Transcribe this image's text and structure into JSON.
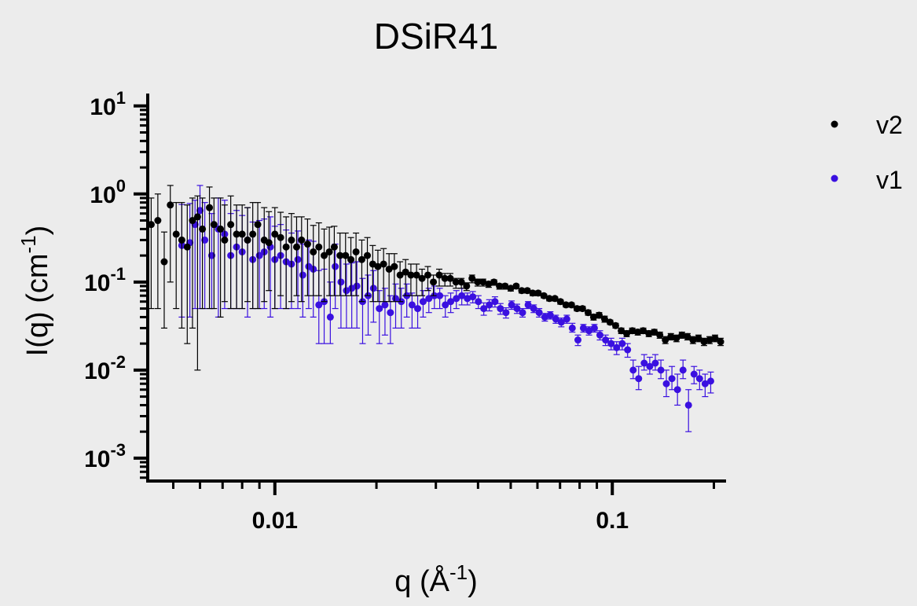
{
  "chart_data": {
    "type": "scatter",
    "title": "DSiR41",
    "xlabel": {
      "main": "q (Å",
      "sup": "-1",
      "tail": ")"
    },
    "ylabel": {
      "main": "I(q) (cm",
      "sup": "-1",
      "tail": ")"
    },
    "xscale": "log",
    "yscale": "log",
    "xlim": [
      0.0042,
      0.215
    ],
    "ylim": [
      0.00055,
      13
    ],
    "x_ticks": [
      {
        "value": 0.01,
        "label": "0.01"
      },
      {
        "value": 0.1,
        "label": "0.1"
      }
    ],
    "y_ticks": [
      {
        "value": 10,
        "base": "10",
        "exp": "1"
      },
      {
        "value": 1,
        "base": "10",
        "exp": "0"
      },
      {
        "value": 0.1,
        "base": "10",
        "exp": "-1"
      },
      {
        "value": 0.01,
        "base": "10",
        "exp": "-2"
      },
      {
        "value": 0.001,
        "base": "10",
        "exp": "-3"
      }
    ],
    "grid": false,
    "legend_position": "top-right",
    "series": [
      {
        "name": "v2",
        "color": "#000000",
        "x": [
          0.0043,
          0.0045,
          0.0047,
          0.0049,
          0.0051,
          0.0053,
          0.0055,
          0.0057,
          0.0059,
          0.0061,
          0.0064,
          0.0066,
          0.0069,
          0.0071,
          0.0074,
          0.0077,
          0.008,
          0.0083,
          0.0086,
          0.0089,
          0.0093,
          0.0096,
          0.01,
          0.0104,
          0.0108,
          0.0112,
          0.0116,
          0.012,
          0.0125,
          0.013,
          0.0135,
          0.014,
          0.0145,
          0.015,
          0.0156,
          0.0162,
          0.0168,
          0.0174,
          0.0181,
          0.0188,
          0.0195,
          0.0202,
          0.021,
          0.0218,
          0.0226,
          0.0235,
          0.0244,
          0.0253,
          0.0263,
          0.0273,
          0.0284,
          0.0295,
          0.0307,
          0.0319,
          0.0331,
          0.0344,
          0.0357,
          0.037,
          0.0384,
          0.0399,
          0.0414,
          0.043,
          0.0446,
          0.0463,
          0.0481,
          0.05,
          0.0519,
          0.0539,
          0.056,
          0.0581,
          0.0603,
          0.0627,
          0.0651,
          0.0676,
          0.0702,
          0.0729,
          0.0757,
          0.0786,
          0.0816,
          0.0848,
          0.088,
          0.0914,
          0.0949,
          0.0985,
          0.1023,
          0.1063,
          0.1103,
          0.1146,
          0.119,
          0.1235,
          0.1283,
          0.1332,
          0.1383,
          0.1436,
          0.1491,
          0.1549,
          0.1608,
          0.167,
          0.1734,
          0.1801,
          0.187,
          0.1942,
          0.2016,
          0.2094
        ],
        "y": [
          0.45,
          0.5,
          0.17,
          0.75,
          0.35,
          0.3,
          0.25,
          0.5,
          0.55,
          0.4,
          0.7,
          0.45,
          0.4,
          0.3,
          0.45,
          0.35,
          0.35,
          0.3,
          0.35,
          0.45,
          0.3,
          0.28,
          0.35,
          0.32,
          0.25,
          0.3,
          0.25,
          0.3,
          0.27,
          0.22,
          0.25,
          0.2,
          0.22,
          0.25,
          0.2,
          0.2,
          0.18,
          0.22,
          0.18,
          0.2,
          0.16,
          0.15,
          0.16,
          0.14,
          0.15,
          0.12,
          0.13,
          0.12,
          0.12,
          0.11,
          0.12,
          0.1,
          0.12,
          0.11,
          0.11,
          0.1,
          0.1,
          0.09,
          0.11,
          0.1,
          0.1,
          0.095,
          0.1,
          0.09,
          0.09,
          0.085,
          0.09,
          0.08,
          0.08,
          0.075,
          0.075,
          0.07,
          0.065,
          0.065,
          0.06,
          0.055,
          0.055,
          0.05,
          0.05,
          0.045,
          0.04,
          0.042,
          0.038,
          0.035,
          0.032,
          0.028,
          0.026,
          0.028,
          0.027,
          0.028,
          0.026,
          0.027,
          0.025,
          0.022,
          0.024,
          0.023,
          0.025,
          0.024,
          0.022,
          0.023,
          0.021,
          0.022,
          0.023,
          0.021
        ],
        "error_low": [
          0.4,
          0.45,
          0.14,
          0.65,
          0.3,
          0.27,
          0.23,
          0.47,
          0.54,
          0.35,
          0.65,
          0.4,
          0.36,
          0.24,
          0.4,
          0.3,
          0.3,
          0.24,
          0.3,
          0.4,
          0.24,
          0.2,
          0.3,
          0.25,
          0.2,
          0.24,
          0.18,
          0.24,
          0.2,
          0.15,
          0.18,
          0.14,
          0.15,
          0.18,
          0.13,
          0.13,
          0.11,
          0.15,
          0.12,
          0.13,
          0.1,
          0.09,
          0.1,
          0.08,
          0.09,
          0.06,
          0.06,
          0.05,
          0.05,
          0.04,
          0.04,
          0.03,
          0.03,
          0.02,
          0.02,
          0.015,
          0.015,
          0.01,
          0.012,
          0.01,
          0.01,
          0.008,
          0.008,
          0.007,
          0.007,
          0.006,
          0.006,
          0.005,
          0.005,
          0.005,
          0.005,
          0.004,
          0.004,
          0.004,
          0.004,
          0.003,
          0.003,
          0.003,
          0.003,
          0.003,
          0.003,
          0.003,
          0.003,
          0.002,
          0.002,
          0.002,
          0.002,
          0.002,
          0.002,
          0.002,
          0.002,
          0.002,
          0.002,
          0.002,
          0.002,
          0.002,
          0.002,
          0.002,
          0.002,
          0.002,
          0.002,
          0.002,
          0.002,
          0.002
        ],
        "error_high": [
          0.45,
          0.5,
          0.2,
          0.5,
          0.45,
          0.5,
          0.5,
          0.4,
          0.4,
          0.5,
          0.5,
          0.45,
          0.5,
          0.45,
          0.5,
          0.4,
          0.4,
          0.4,
          0.45,
          0.35,
          0.4,
          0.35,
          0.35,
          0.3,
          0.3,
          0.3,
          0.3,
          0.25,
          0.25,
          0.22,
          0.22,
          0.2,
          0.2,
          0.18,
          0.16,
          0.16,
          0.14,
          0.14,
          0.12,
          0.12,
          0.1,
          0.08,
          0.08,
          0.07,
          0.06,
          0.05,
          0.05,
          0.04,
          0.04,
          0.03,
          0.03,
          0.02,
          0.02,
          0.015,
          0.015,
          0.01,
          0.01,
          0.008,
          0.01,
          0.008,
          0.008,
          0.006,
          0.006,
          0.005,
          0.005,
          0.004,
          0.004,
          0.004,
          0.004,
          0.004,
          0.004,
          0.003,
          0.003,
          0.003,
          0.003,
          0.003,
          0.003,
          0.003,
          0.003,
          0.003,
          0.003,
          0.003,
          0.003,
          0.002,
          0.002,
          0.002,
          0.002,
          0.002,
          0.002,
          0.002,
          0.002,
          0.002,
          0.002,
          0.002,
          0.002,
          0.002,
          0.002,
          0.002,
          0.002,
          0.002,
          0.002,
          0.002,
          0.002,
          0.002
        ]
      },
      {
        "name": "v1",
        "color": "#3a10e0",
        "x": [
          0.0053,
          0.0056,
          0.0058,
          0.006,
          0.0062,
          0.0065,
          0.0068,
          0.0071,
          0.0074,
          0.0077,
          0.008,
          0.0083,
          0.0086,
          0.009,
          0.0093,
          0.0097,
          0.01,
          0.0104,
          0.0108,
          0.0112,
          0.0117,
          0.0121,
          0.0126,
          0.013,
          0.0135,
          0.014,
          0.0146,
          0.0151,
          0.0157,
          0.0163,
          0.0169,
          0.0175,
          0.0182,
          0.0189,
          0.0196,
          0.0204,
          0.0212,
          0.022,
          0.0228,
          0.0237,
          0.0246,
          0.0255,
          0.0265,
          0.0275,
          0.0286,
          0.0297,
          0.0308,
          0.032,
          0.0332,
          0.0345,
          0.0358,
          0.0372,
          0.0386,
          0.0401,
          0.0416,
          0.0432,
          0.0449,
          0.0466,
          0.0484,
          0.0503,
          0.0522,
          0.0542,
          0.0563,
          0.0585,
          0.0607,
          0.0631,
          0.0655,
          0.068,
          0.0706,
          0.0733,
          0.0761,
          0.0791,
          0.0821,
          0.0853,
          0.0885,
          0.0919,
          0.0955,
          0.0992,
          0.103,
          0.107,
          0.111,
          0.1153,
          0.1197,
          0.1243,
          0.1291,
          0.1341,
          0.1393,
          0.1446,
          0.1502,
          0.156,
          0.162,
          0.1682,
          0.1747,
          0.1814,
          0.1884,
          0.1957
        ],
        "y": [
          0.26,
          0.28,
          0.45,
          0.65,
          0.3,
          0.2,
          0.4,
          0.35,
          0.2,
          0.25,
          0.22,
          0.3,
          0.18,
          0.2,
          0.22,
          0.25,
          0.18,
          0.2,
          0.17,
          0.16,
          0.18,
          0.12,
          0.15,
          0.14,
          0.055,
          0.06,
          0.04,
          0.15,
          0.1,
          0.08,
          0.085,
          0.09,
          0.06,
          0.07,
          0.085,
          0.05,
          0.055,
          0.045,
          0.065,
          0.06,
          0.07,
          0.055,
          0.05,
          0.06,
          0.065,
          0.07,
          0.07,
          0.055,
          0.06,
          0.065,
          0.07,
          0.065,
          0.068,
          0.06,
          0.05,
          0.055,
          0.06,
          0.05,
          0.045,
          0.055,
          0.05,
          0.045,
          0.055,
          0.05,
          0.045,
          0.04,
          0.042,
          0.038,
          0.035,
          0.038,
          0.03,
          0.022,
          0.03,
          0.028,
          0.03,
          0.025,
          0.022,
          0.02,
          0.018,
          0.02,
          0.017,
          0.01,
          0.008,
          0.012,
          0.011,
          0.012,
          0.01,
          0.007,
          0.008,
          0.006,
          0.01,
          0.004,
          0.009,
          0.008,
          0.007,
          0.0075
        ],
        "error_low": [
          0.22,
          0.24,
          0.4,
          0.6,
          0.25,
          0.15,
          0.36,
          0.3,
          0.15,
          0.2,
          0.17,
          0.26,
          0.13,
          0.15,
          0.17,
          0.21,
          0.13,
          0.15,
          0.12,
          0.11,
          0.13,
          0.08,
          0.1,
          0.1,
          0.035,
          0.04,
          0.02,
          0.1,
          0.07,
          0.05,
          0.055,
          0.06,
          0.04,
          0.045,
          0.05,
          0.03,
          0.03,
          0.025,
          0.035,
          0.03,
          0.03,
          0.025,
          0.02,
          0.02,
          0.02,
          0.02,
          0.02,
          0.015,
          0.015,
          0.015,
          0.015,
          0.01,
          0.01,
          0.01,
          0.008,
          0.008,
          0.008,
          0.007,
          0.006,
          0.006,
          0.006,
          0.005,
          0.005,
          0.005,
          0.005,
          0.004,
          0.004,
          0.004,
          0.004,
          0.004,
          0.003,
          0.003,
          0.003,
          0.003,
          0.003,
          0.003,
          0.003,
          0.003,
          0.003,
          0.003,
          0.003,
          0.002,
          0.002,
          0.002,
          0.002,
          0.002,
          0.002,
          0.002,
          0.002,
          0.002,
          0.002,
          0.002,
          0.002,
          0.002,
          0.002,
          0.002
        ],
        "error_high": [
          0.5,
          0.5,
          0.4,
          0.6,
          0.5,
          0.4,
          0.5,
          0.5,
          0.4,
          0.4,
          0.35,
          0.4,
          0.3,
          0.3,
          0.3,
          0.3,
          0.25,
          0.25,
          0.22,
          0.2,
          0.2,
          0.15,
          0.15,
          0.15,
          0.08,
          0.08,
          0.06,
          0.12,
          0.1,
          0.08,
          0.08,
          0.08,
          0.05,
          0.05,
          0.05,
          0.03,
          0.03,
          0.025,
          0.03,
          0.025,
          0.025,
          0.02,
          0.02,
          0.02,
          0.02,
          0.02,
          0.015,
          0.015,
          0.015,
          0.015,
          0.015,
          0.01,
          0.01,
          0.01,
          0.008,
          0.008,
          0.008,
          0.007,
          0.006,
          0.006,
          0.006,
          0.005,
          0.005,
          0.005,
          0.005,
          0.004,
          0.004,
          0.004,
          0.004,
          0.004,
          0.004,
          0.003,
          0.003,
          0.003,
          0.003,
          0.003,
          0.003,
          0.003,
          0.003,
          0.003,
          0.003,
          0.003,
          0.003,
          0.003,
          0.003,
          0.003,
          0.003,
          0.003,
          0.003,
          0.003,
          0.003,
          0.002,
          0.002,
          0.002,
          0.002,
          0.002
        ]
      }
    ]
  }
}
